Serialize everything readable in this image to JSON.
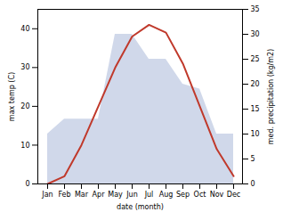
{
  "chart_data": {
    "type": "line",
    "categories": [
      "Jan",
      "Feb",
      "Mar",
      "Apr",
      "May",
      "Jun",
      "Jul",
      "Aug",
      "Sep",
      "Oct",
      "Nov",
      "Dec"
    ],
    "series": [
      {
        "type": "area",
        "axis": "y2",
        "color": "#aab8d8",
        "values": [
          10,
          13,
          13,
          13,
          30,
          30,
          25,
          25,
          20,
          19,
          10,
          10
        ]
      },
      {
        "type": "line",
        "color": "#c0392b",
        "values": [
          0,
          2,
          10,
          20,
          30,
          38,
          41,
          39,
          31,
          20,
          9,
          2
        ]
      }
    ],
    "xlabel": "date (month)",
    "ylabel": "max temp (C)",
    "y2label": "med. precipitation (kg/m2)",
    "ylim": [
      0,
      45
    ],
    "yticks": [
      0,
      10,
      20,
      30,
      40
    ],
    "y2lim": [
      0,
      35
    ],
    "y2ticks": [
      0,
      5,
      10,
      15,
      20,
      25,
      30,
      35
    ],
    "grid": false
  }
}
